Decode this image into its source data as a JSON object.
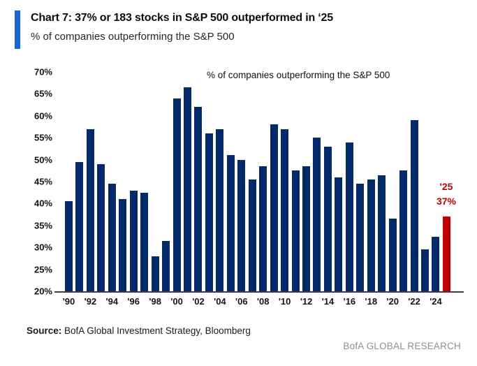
{
  "header": {
    "title": "Chart 7: 37% or 183 stocks in S&P 500 outperformed in ‘25",
    "subtitle": "% of companies outperforming the S&P 500"
  },
  "chart_data": {
    "type": "bar",
    "title": "% of companies outperforming the S&P 500",
    "categories": [
      "1990",
      "1991",
      "1992",
      "1993",
      "1994",
      "1995",
      "1996",
      "1997",
      "1998",
      "1999",
      "2000",
      "2001",
      "2002",
      "2003",
      "2004",
      "2005",
      "2006",
      "2007",
      "2008",
      "2009",
      "2010",
      "2011",
      "2012",
      "2013",
      "2014",
      "2015",
      "2016",
      "2017",
      "2018",
      "2019",
      "2020",
      "2021",
      "2022",
      "2023",
      "2024",
      "2025"
    ],
    "values": [
      40.5,
      49.5,
      57,
      49,
      44.5,
      41,
      43,
      42.5,
      28,
      31.5,
      64,
      66.5,
      62,
      56,
      57,
      51,
      50,
      45.5,
      48.5,
      58,
      57,
      47.5,
      48.5,
      55,
      53,
      46,
      54,
      44.5,
      45.5,
      46.5,
      36.5,
      47.5,
      59,
      29.5,
      32.5,
      37
    ],
    "highlight_index": 35,
    "x_tick_labels": [
      "'90",
      "'92",
      "'94",
      "'96",
      "'98",
      "'00",
      "'02",
      "'04",
      "'06",
      "'08",
      "'10",
      "'12",
      "'14",
      "'16",
      "'18",
      "'20",
      "'22",
      "'24"
    ],
    "y_tick_labels": [
      "70%",
      "65%",
      "60%",
      "55%",
      "50%",
      "45%",
      "40%",
      "35%",
      "30%",
      "25%",
      "20%"
    ],
    "ylim": [
      20,
      70
    ],
    "grid": false,
    "legend": "none",
    "bar_color": "#052a6a",
    "highlight_color": "#c00000",
    "annotation": {
      "line1": "'25",
      "line2": "37%"
    }
  },
  "footer": {
    "source_label": "Source:",
    "source_text": " BofA Global Investment Strategy, Bloomberg",
    "brand": "BofA GLOBAL RESEARCH"
  }
}
